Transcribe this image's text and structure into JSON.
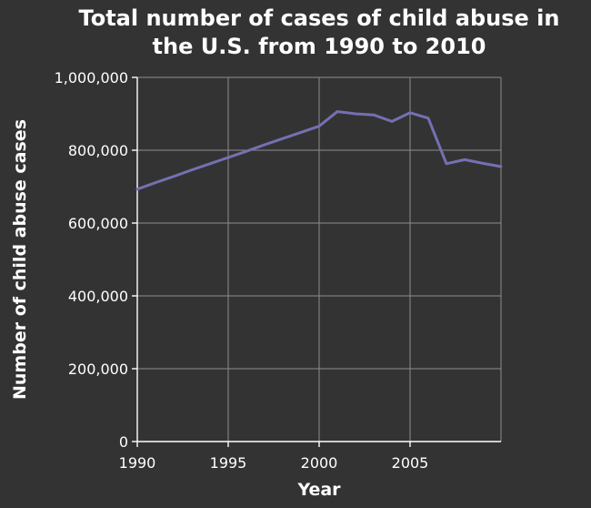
{
  "chart_data": {
    "type": "line",
    "title": [
      "Total number of cases of child abuse in",
      "the U.S. from 1990 to 2010"
    ],
    "xlabel": "Year",
    "ylabel": "Number of child abuse cases",
    "xlim": [
      1990,
      2010
    ],
    "ylim": [
      0,
      1000000
    ],
    "x_ticks": [
      1990,
      1995,
      2000,
      2005
    ],
    "x_tick_labels": [
      "1990",
      "1995",
      "2000",
      "2005"
    ],
    "y_ticks": [
      0,
      200000,
      400000,
      600000,
      800000,
      1000000
    ],
    "y_tick_labels": [
      "0",
      "200,000",
      "400,000",
      "600,000",
      "800,000",
      "1,000,000"
    ],
    "grid": true,
    "series": [
      {
        "color": "#7570b3",
        "x": [
          1990,
          1991,
          1992,
          1993,
          1994,
          1995,
          1996,
          1997,
          1998,
          1999,
          2000,
          2001,
          2002,
          2003,
          2004,
          2005,
          2006,
          2007,
          2008,
          2009,
          2010
        ],
        "values": [
          693000,
          711000,
          728000,
          746000,
          763000,
          780000,
          797000,
          815000,
          832000,
          849000,
          866000,
          906000,
          900000,
          897000,
          879000,
          903000,
          888000,
          763000,
          774000,
          764000,
          755000
        ]
      }
    ]
  }
}
